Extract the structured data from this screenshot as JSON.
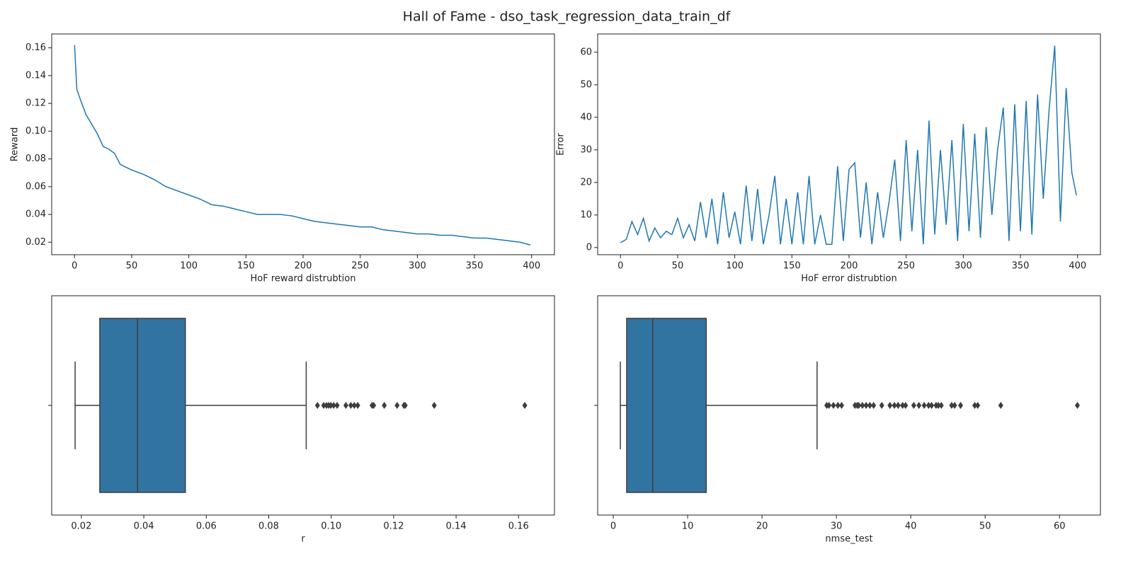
{
  "chart_data": [
    {
      "type": "line",
      "title": "Hall of Fame - dso_task_regression_data_train_df",
      "xlabel": "HoF reward distrubtion",
      "ylabel": "Reward",
      "color": "#1f77b4",
      "x": [
        0,
        2,
        5,
        10,
        15,
        20,
        25,
        30,
        35,
        40,
        50,
        60,
        70,
        80,
        90,
        100,
        110,
        120,
        130,
        140,
        150,
        160,
        170,
        180,
        190,
        200,
        210,
        220,
        230,
        240,
        250,
        260,
        270,
        280,
        290,
        300,
        310,
        320,
        330,
        340,
        350,
        360,
        370,
        380,
        390,
        399
      ],
      "values": [
        0.162,
        0.13,
        0.123,
        0.112,
        0.105,
        0.098,
        0.089,
        0.087,
        0.084,
        0.076,
        0.072,
        0.069,
        0.065,
        0.06,
        0.057,
        0.054,
        0.051,
        0.047,
        0.046,
        0.044,
        0.042,
        0.04,
        0.04,
        0.04,
        0.039,
        0.037,
        0.035,
        0.034,
        0.033,
        0.032,
        0.031,
        0.031,
        0.029,
        0.028,
        0.027,
        0.026,
        0.026,
        0.025,
        0.025,
        0.024,
        0.023,
        0.023,
        0.022,
        0.021,
        0.02,
        0.018
      ],
      "xlim": [
        -20,
        420
      ],
      "xticks": [
        0,
        50,
        100,
        150,
        200,
        250,
        300,
        350,
        400
      ],
      "ylim": [
        0.011,
        0.17
      ],
      "yticks": [
        0.02,
        0.04,
        0.06,
        0.08,
        {
          "value": 0.1,
          "label": "0.10"
        },
        0.12,
        0.14,
        0.16
      ]
    },
    {
      "type": "line",
      "xlabel": "HoF error distrubtion",
      "ylabel": "Error",
      "color": "#1f77b4",
      "x": [
        0,
        5,
        10,
        15,
        20,
        25,
        30,
        35,
        40,
        45,
        50,
        55,
        60,
        65,
        70,
        75,
        80,
        85,
        90,
        95,
        100,
        105,
        110,
        115,
        120,
        125,
        130,
        135,
        140,
        145,
        150,
        155,
        160,
        165,
        170,
        175,
        180,
        185,
        190,
        195,
        200,
        205,
        210,
        215,
        220,
        225,
        230,
        235,
        240,
        245,
        250,
        255,
        260,
        265,
        270,
        275,
        280,
        285,
        290,
        295,
        300,
        305,
        310,
        315,
        320,
        325,
        330,
        335,
        340,
        345,
        350,
        355,
        360,
        365,
        370,
        375,
        380,
        385,
        390,
        395,
        399
      ],
      "values": [
        1.5,
        2.5,
        8,
        4,
        9,
        2,
        6,
        3,
        5,
        4,
        9,
        3,
        7,
        2,
        14,
        3,
        15,
        1,
        17,
        3,
        11,
        1,
        19,
        2,
        18,
        1,
        10,
        22,
        1,
        15,
        1,
        17,
        1,
        22,
        1,
        10,
        1,
        1,
        25,
        2,
        24,
        26,
        3,
        20,
        1,
        17,
        3,
        14,
        27,
        2,
        33,
        5,
        30,
        1,
        39,
        4,
        30,
        7,
        33,
        2,
        38,
        5,
        35,
        3,
        37,
        10,
        30,
        43,
        2,
        44,
        5,
        45,
        4,
        47,
        15,
        42,
        62,
        8,
        49,
        23,
        16
      ],
      "xlim": [
        -20,
        420
      ],
      "xticks": [
        0,
        50,
        100,
        150,
        200,
        250,
        300,
        350,
        400
      ],
      "ylim": [
        -2.2,
        65.6
      ],
      "yticks": [
        0,
        10,
        20,
        30,
        40,
        50,
        60
      ]
    },
    {
      "type": "box",
      "xlabel": "r",
      "color": "#3274a1",
      "whisker_low": 0.018,
      "q1": 0.0259,
      "median": 0.038,
      "q3": 0.0533,
      "whisker_high": 0.092,
      "outliers": [
        0.0956,
        0.0976,
        0.0985,
        0.0992,
        0.0999,
        0.1008,
        0.1019,
        0.1047,
        0.1063,
        0.1074,
        0.1085,
        0.1131,
        0.1136,
        0.117,
        0.1211,
        0.1233,
        0.1237,
        0.133,
        0.162
      ],
      "xlim": [
        0.0105,
        0.1715
      ],
      "xticks": [
        0.02,
        0.04,
        0.06,
        0.08,
        {
          "value": 0.1,
          "label": "0.10"
        },
        0.12,
        0.14,
        0.16
      ]
    },
    {
      "type": "box",
      "xlabel": "nmse_test",
      "color": "#3274a1",
      "whisker_low": 0.95,
      "q1": 1.8,
      "median": 5.3,
      "q3": 12.5,
      "whisker_high": 27.4,
      "outliers": [
        28.7,
        29.0,
        29.6,
        30.2,
        30.7,
        32.5,
        32.8,
        33.0,
        33.5,
        34.0,
        34.5,
        35.0,
        36.1,
        37.2,
        37.8,
        38.3,
        38.9,
        39.3,
        40.4,
        41.1,
        41.8,
        42.4,
        42.8,
        43.4,
        43.7,
        44.1,
        45.5,
        45.9,
        46.7,
        48.6,
        49.0,
        52.1,
        62.4
      ],
      "xlim": [
        -2.1,
        65.5
      ],
      "xticks": [
        0,
        10,
        20,
        30,
        40,
        50,
        60
      ]
    }
  ]
}
